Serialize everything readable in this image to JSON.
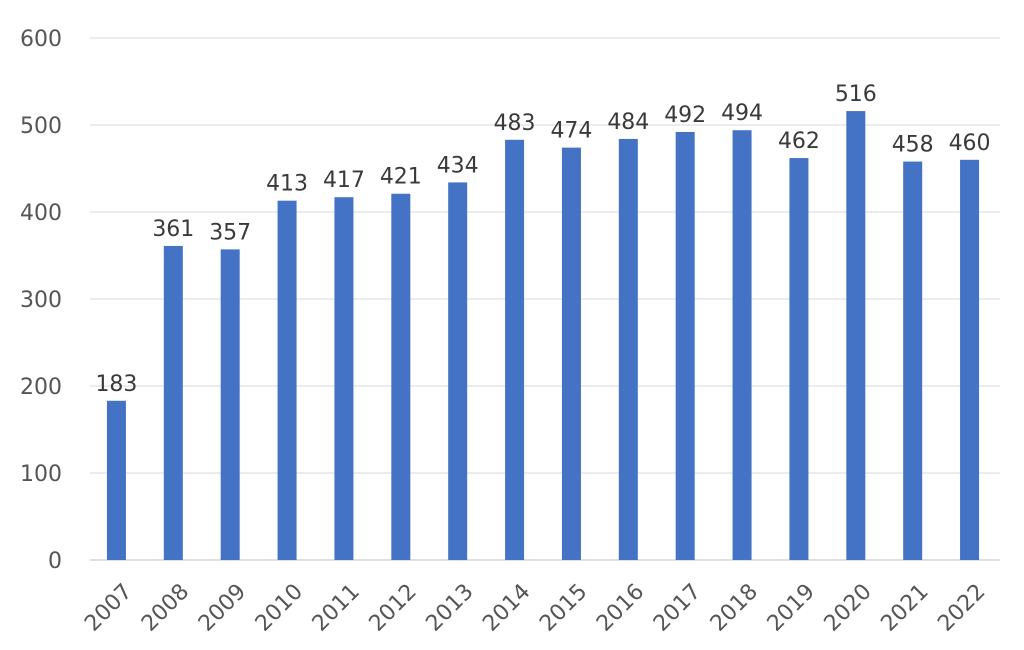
{
  "chart_data": {
    "type": "bar",
    "title": "",
    "xlabel": "",
    "ylabel": "",
    "categories": [
      "2007",
      "2008",
      "2009",
      "2010",
      "2011",
      "2012",
      "2013",
      "2014",
      "2015",
      "2016",
      "2017",
      "2018",
      "2019",
      "2020",
      "2021",
      "2022"
    ],
    "values": [
      183,
      361,
      357,
      413,
      417,
      421,
      434,
      483,
      474,
      484,
      492,
      494,
      462,
      516,
      458,
      460
    ],
    "data_labels": [
      "183",
      "361",
      "357",
      "413",
      "417",
      "421",
      "434",
      "483",
      "474",
      "484",
      "492",
      "494",
      "462",
      "516",
      "458",
      "460"
    ],
    "ylim": [
      0,
      600
    ],
    "yticks": [
      0,
      100,
      200,
      300,
      400,
      500,
      600
    ],
    "ytick_labels": [
      "0",
      "100",
      "200",
      "300",
      "400",
      "500",
      "600"
    ],
    "grid": true,
    "legend": "none",
    "colors": {
      "bar": "#4472c4",
      "grid": "#d9d9d9",
      "tick_text": "#555555",
      "label_text": "#3a3a3a"
    }
  }
}
